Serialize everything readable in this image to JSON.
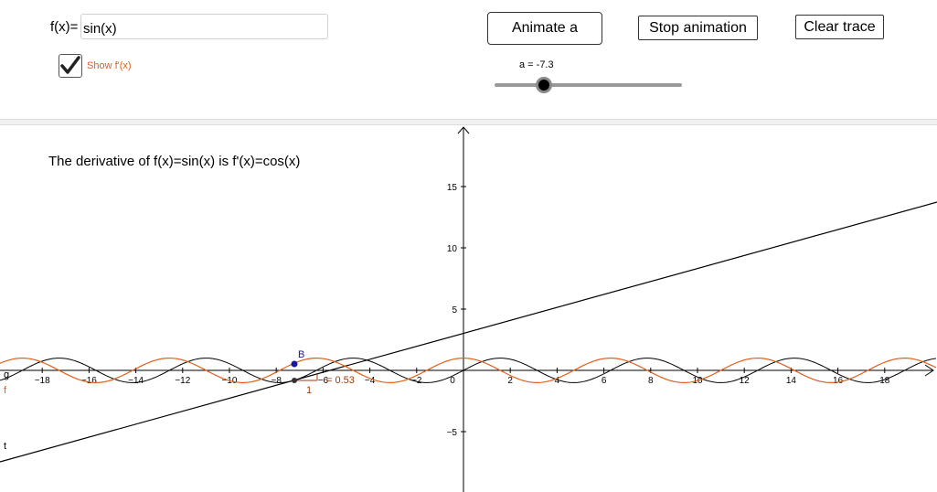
{
  "controls": {
    "function_label": "f(x)=",
    "function_value": "sin(x)",
    "show_derivative_label": "Show f'(x)",
    "show_derivative_checked": true,
    "animate_button": "Animate a",
    "stop_button": "Stop  animation",
    "clear_button": "Clear trace",
    "slider_label": "a = -7.3",
    "slider_value": -7.3
  },
  "graph": {
    "caption": "The derivative of f(x)=sin(x) is f'(x)=cos(x)",
    "x_ticks": [
      "-18",
      "-16",
      "-14",
      "-12",
      "-10",
      "-8",
      "-6",
      "-4",
      "-2",
      "0",
      "2",
      "4",
      "6",
      "8",
      "10",
      "12",
      "14",
      "16",
      "18"
    ],
    "y_ticks": [
      "15",
      "10",
      "5",
      "-5"
    ],
    "point_label": "B",
    "curve_labels": {
      "g": "g",
      "f": "f",
      "t": "t"
    },
    "slope_label": "= 0.53",
    "slope_run_label": "1",
    "colors": {
      "f": "#000000",
      "derivative": "#e0601b",
      "point_B": "#1515a8",
      "tangent": "#000000",
      "slope_label": "#a03a0a"
    }
  }
}
